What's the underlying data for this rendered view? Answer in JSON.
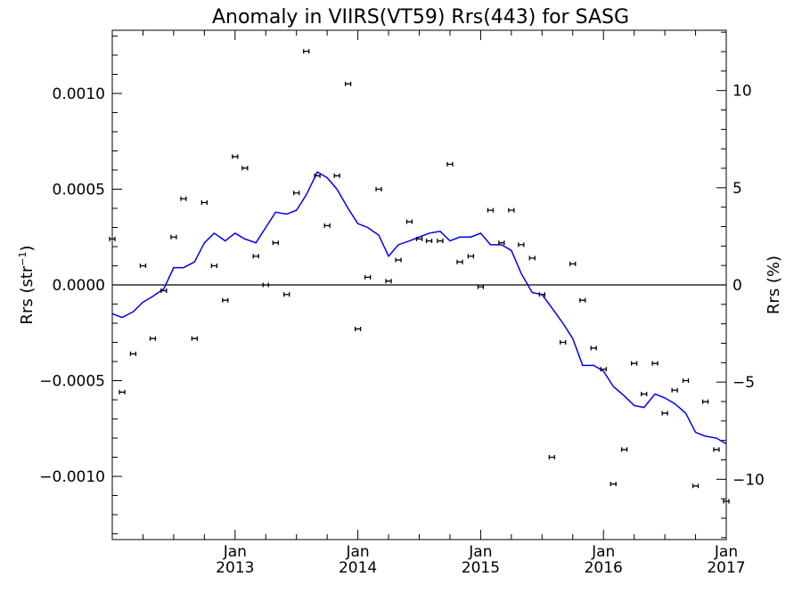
{
  "chart_data": {
    "type": "scatter",
    "title": "Anomaly in VIIRS(VT59) Rrs(443) for SASG",
    "ylabel_left": "Rrs (str",
    "ylabel_left_sup": "−1",
    "ylabel_left_close": ")",
    "ylabel_right": "Rrs (%)",
    "xlim": [
      2012.0,
      2017.0
    ],
    "ylim": [
      -0.00133,
      0.00133
    ],
    "ylim_right_pct": [
      -13.1,
      13.1
    ],
    "zero_line": 0,
    "x_ticks": [
      {
        "x": 2013.0,
        "month": "Jan",
        "year": "2013"
      },
      {
        "x": 2014.0,
        "month": "Jan",
        "year": "2014"
      },
      {
        "x": 2015.0,
        "month": "Jan",
        "year": "2015"
      },
      {
        "x": 2016.0,
        "month": "Jan",
        "year": "2016"
      },
      {
        "x": 2017.0,
        "month": "Jan",
        "year": "2017"
      }
    ],
    "y_ticks_left": [
      {
        "v": 0.001,
        "label": "0.0010"
      },
      {
        "v": 0.0005,
        "label": "0.0005"
      },
      {
        "v": 0.0,
        "label": "0.0000"
      },
      {
        "v": -0.0005,
        "label": "−0.0005"
      },
      {
        "v": -0.001,
        "label": "−0.0010"
      }
    ],
    "y_ticks_right": [
      {
        "v": 10,
        "label": "10"
      },
      {
        "v": 5,
        "label": "5"
      },
      {
        "v": 0,
        "label": "0"
      },
      {
        "v": -5,
        "label": "−5"
      },
      {
        "v": -10,
        "label": "−10"
      }
    ],
    "series": [
      {
        "kind": "points_errorbar",
        "color": "#000000",
        "points": [
          [
            2012.0,
            0.00024
          ],
          [
            2012.08,
            -0.00056
          ],
          [
            2012.17,
            -0.00036
          ],
          [
            2012.25,
            0.0001
          ],
          [
            2012.33,
            -0.00028
          ],
          [
            2012.42,
            -3e-05
          ],
          [
            2012.5,
            0.00025
          ],
          [
            2012.58,
            0.00045
          ],
          [
            2012.67,
            -0.00028
          ],
          [
            2012.75,
            0.00043
          ],
          [
            2012.83,
            0.0001
          ],
          [
            2012.92,
            -8e-05
          ],
          [
            2013.0,
            0.00067
          ],
          [
            2013.08,
            0.00061
          ],
          [
            2013.17,
            0.00015
          ],
          [
            2013.25,
            0.0
          ],
          [
            2013.33,
            0.00022
          ],
          [
            2013.42,
            -5e-05
          ],
          [
            2013.5,
            0.00048
          ],
          [
            2013.58,
            0.00122
          ],
          [
            2013.67,
            0.00057
          ],
          [
            2013.75,
            0.00031
          ],
          [
            2013.83,
            0.00057
          ],
          [
            2013.92,
            0.00105
          ],
          [
            2014.0,
            -0.00023
          ],
          [
            2014.08,
            4e-05
          ],
          [
            2014.17,
            0.0005
          ],
          [
            2014.25,
            2e-05
          ],
          [
            2014.33,
            0.00013
          ],
          [
            2014.42,
            0.00033
          ],
          [
            2014.5,
            0.00024
          ],
          [
            2014.58,
            0.00023
          ],
          [
            2014.67,
            0.00023
          ],
          [
            2014.75,
            0.00063
          ],
          [
            2014.83,
            0.00012
          ],
          [
            2014.92,
            0.00015
          ],
          [
            2015.0,
            -1e-05
          ],
          [
            2015.08,
            0.00039
          ],
          [
            2015.17,
            0.00022
          ],
          [
            2015.25,
            0.00039
          ],
          [
            2015.33,
            0.00021
          ],
          [
            2015.42,
            0.00014
          ],
          [
            2015.5,
            -5e-05
          ],
          [
            2015.58,
            -0.0009
          ],
          [
            2015.67,
            -0.0003
          ],
          [
            2015.75,
            0.00011
          ],
          [
            2015.83,
            -8e-05
          ],
          [
            2015.92,
            -0.00033
          ],
          [
            2016.0,
            -0.00044
          ],
          [
            2016.08,
            -0.00104
          ],
          [
            2016.17,
            -0.00086
          ],
          [
            2016.25,
            -0.00041
          ],
          [
            2016.33,
            -0.00057
          ],
          [
            2016.42,
            -0.00041
          ],
          [
            2016.5,
            -0.00067
          ],
          [
            2016.58,
            -0.00055
          ],
          [
            2016.67,
            -0.0005
          ],
          [
            2016.75,
            -0.00105
          ],
          [
            2016.83,
            -0.00061
          ],
          [
            2016.92,
            -0.00086
          ],
          [
            2017.0,
            -0.00113
          ]
        ]
      },
      {
        "kind": "line",
        "color": "#0000ee",
        "points": [
          [
            2012.0,
            -0.00015
          ],
          [
            2012.08,
            -0.00017
          ],
          [
            2012.17,
            -0.00014
          ],
          [
            2012.25,
            -9e-05
          ],
          [
            2012.33,
            -6e-05
          ],
          [
            2012.42,
            -2e-05
          ],
          [
            2012.5,
            9e-05
          ],
          [
            2012.58,
            9e-05
          ],
          [
            2012.67,
            0.00012
          ],
          [
            2012.75,
            0.00022
          ],
          [
            2012.83,
            0.00027
          ],
          [
            2012.92,
            0.00023
          ],
          [
            2013.0,
            0.00027
          ],
          [
            2013.08,
            0.00024
          ],
          [
            2013.17,
            0.00022
          ],
          [
            2013.25,
            0.0003
          ],
          [
            2013.33,
            0.00038
          ],
          [
            2013.42,
            0.00037
          ],
          [
            2013.5,
            0.00039
          ],
          [
            2013.58,
            0.00047
          ],
          [
            2013.67,
            0.00059
          ],
          [
            2013.75,
            0.00056
          ],
          [
            2013.83,
            0.0005
          ],
          [
            2013.92,
            0.0004
          ],
          [
            2014.0,
            0.00032
          ],
          [
            2014.08,
            0.0003
          ],
          [
            2014.17,
            0.00026
          ],
          [
            2014.25,
            0.00015
          ],
          [
            2014.33,
            0.00021
          ],
          [
            2014.42,
            0.00023
          ],
          [
            2014.5,
            0.00025
          ],
          [
            2014.58,
            0.00027
          ],
          [
            2014.67,
            0.00028
          ],
          [
            2014.75,
            0.00023
          ],
          [
            2014.83,
            0.00025
          ],
          [
            2014.92,
            0.00025
          ],
          [
            2015.0,
            0.00027
          ],
          [
            2015.08,
            0.00021
          ],
          [
            2015.17,
            0.00021
          ],
          [
            2015.25,
            0.00018
          ],
          [
            2015.33,
            6e-05
          ],
          [
            2015.42,
            -4e-05
          ],
          [
            2015.5,
            -5e-05
          ],
          [
            2015.58,
            -0.00012
          ],
          [
            2015.67,
            -0.0002
          ],
          [
            2015.75,
            -0.00028
          ],
          [
            2015.83,
            -0.00042
          ],
          [
            2015.92,
            -0.00042
          ],
          [
            2016.0,
            -0.00045
          ],
          [
            2016.08,
            -0.00053
          ],
          [
            2016.17,
            -0.00058
          ],
          [
            2016.25,
            -0.00063
          ],
          [
            2016.33,
            -0.00064
          ],
          [
            2016.42,
            -0.00057
          ],
          [
            2016.5,
            -0.00059
          ],
          [
            2016.58,
            -0.00062
          ],
          [
            2016.67,
            -0.00067
          ],
          [
            2016.75,
            -0.00077
          ],
          [
            2016.83,
            -0.00079
          ],
          [
            2016.92,
            -0.0008
          ],
          [
            2017.0,
            -0.00083
          ]
        ]
      }
    ]
  }
}
